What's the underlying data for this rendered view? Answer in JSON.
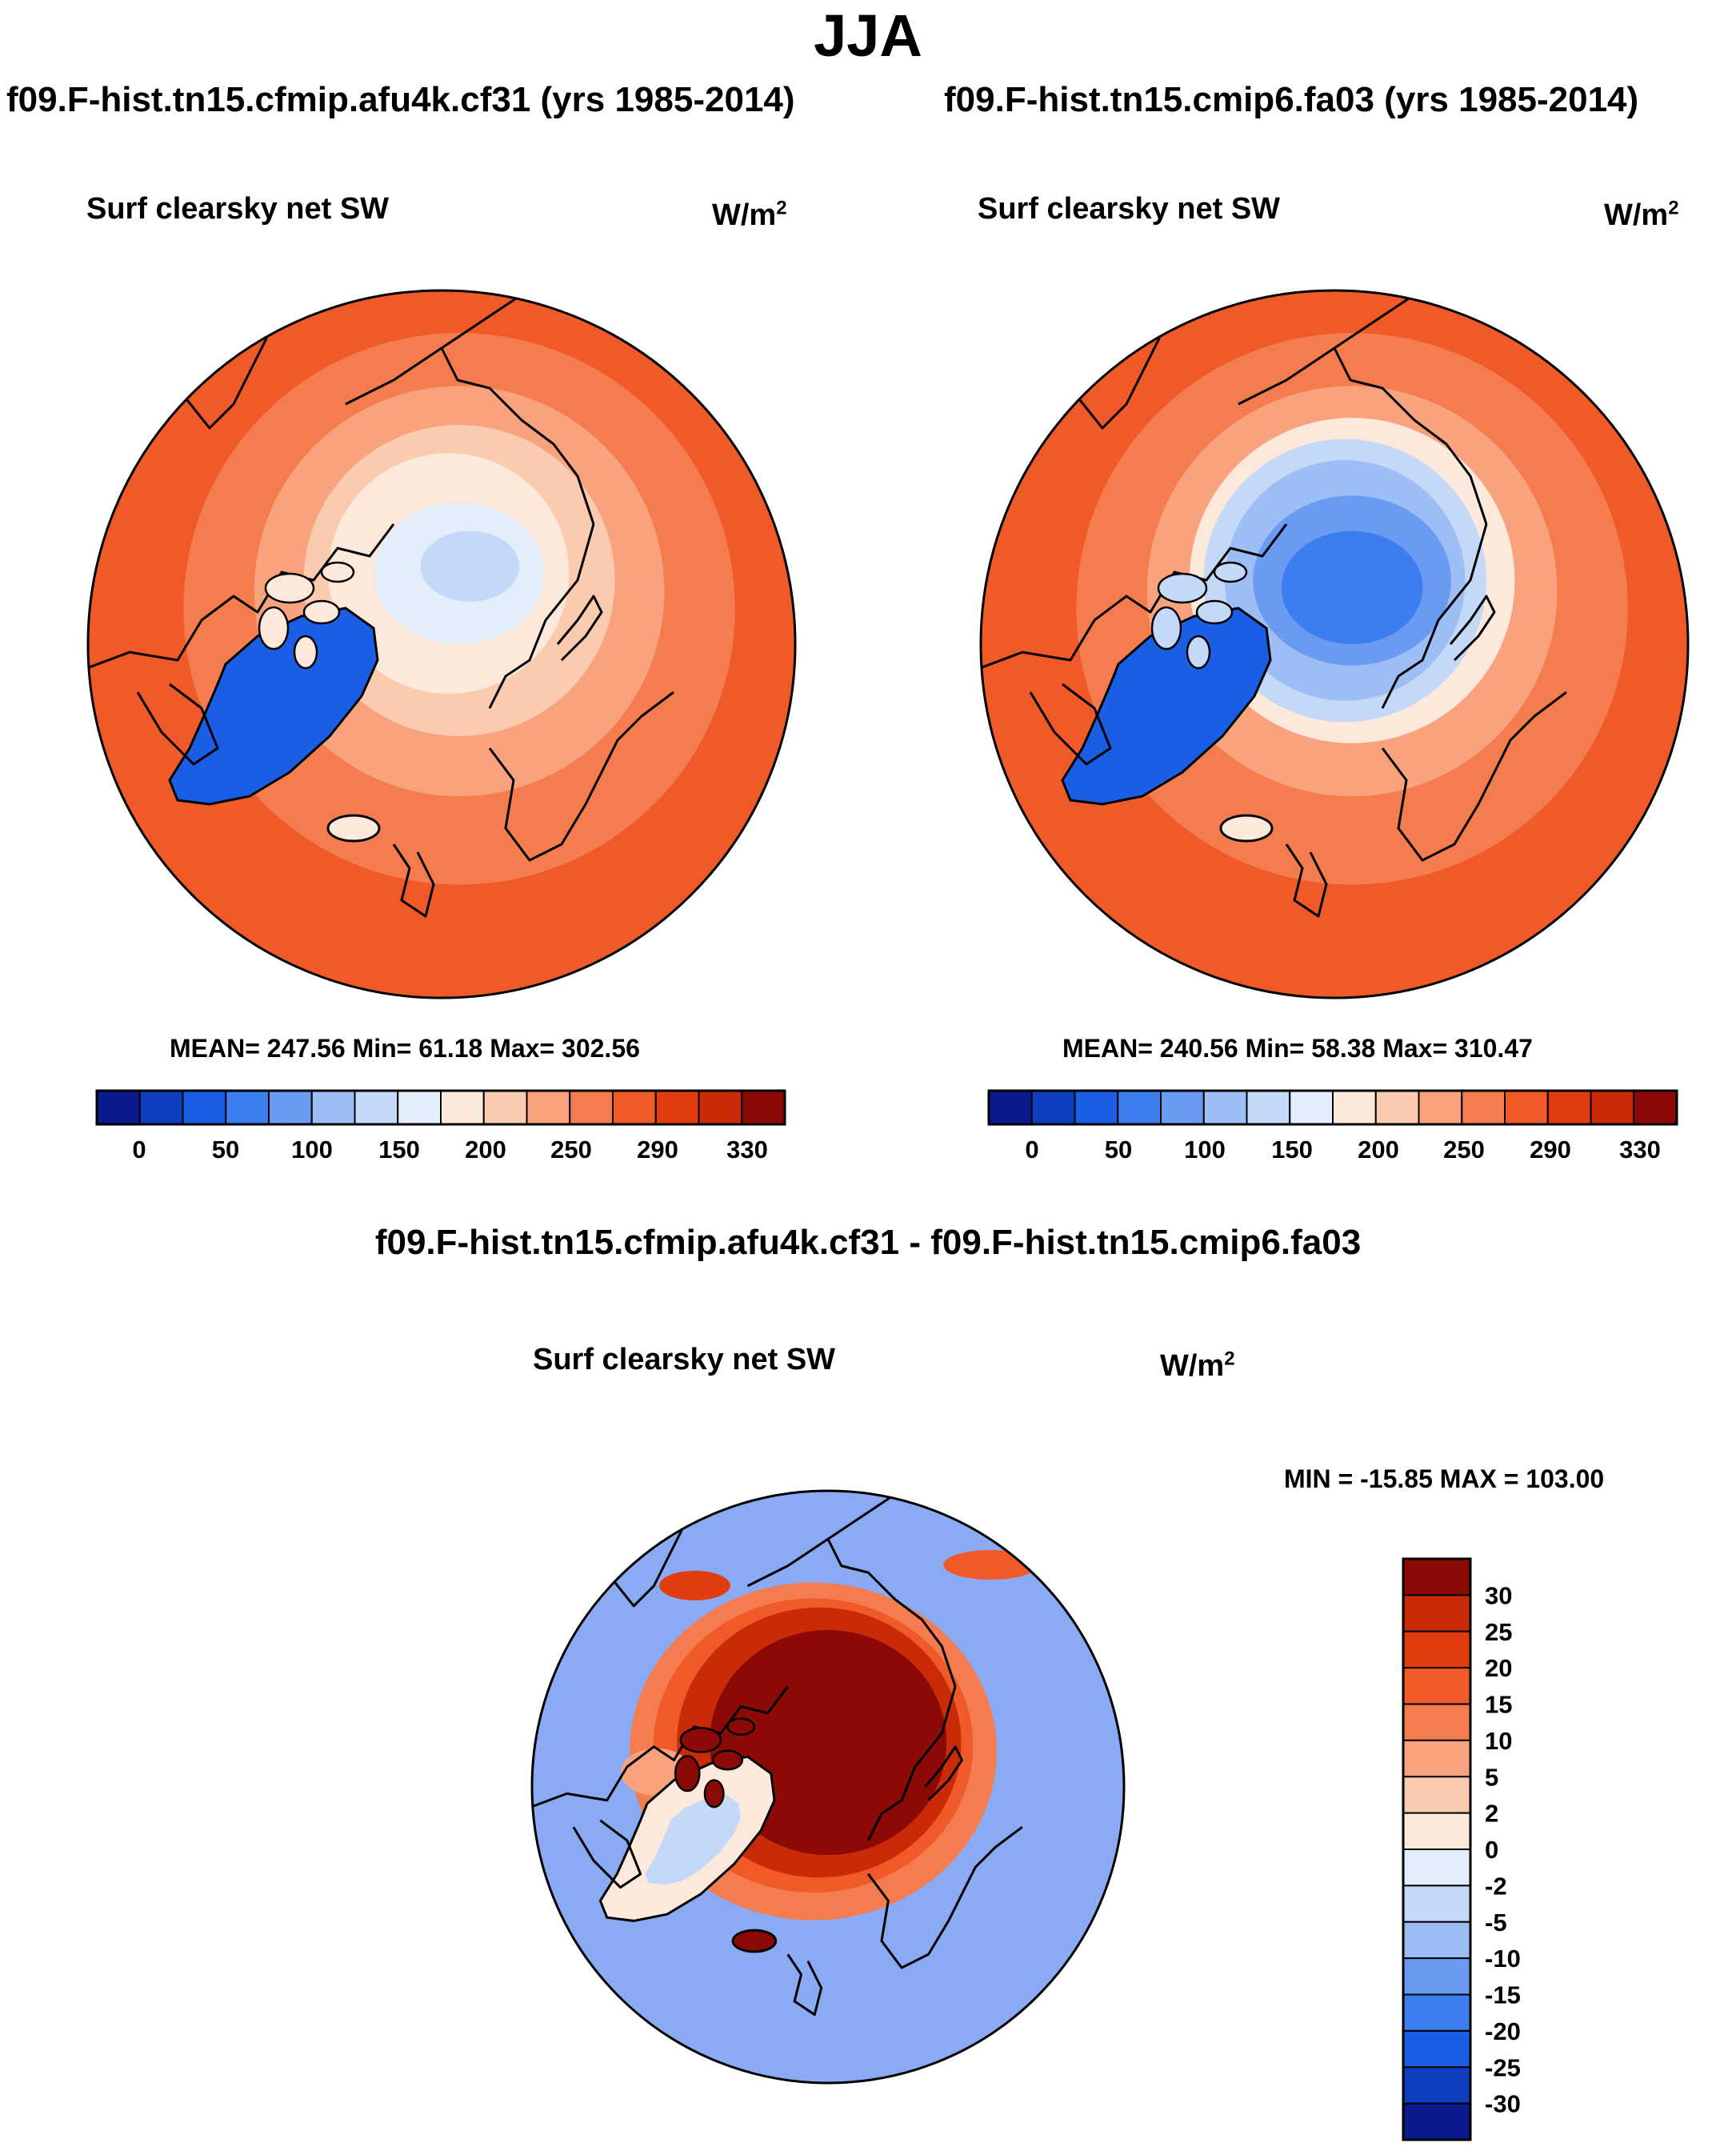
{
  "figure": {
    "season": "JJA",
    "case1": "f09.F-hist.tn15.cfmip.afu4k.cf31 (yrs 1985-2014)",
    "case2": "f09.F-hist.tn15.cmip6.fa03 (yrs 1985-2014)",
    "diff_title": "f09.F-hist.tn15.cfmip.afu4k.cf31 - f09.F-hist.tn15.cmip6.fa03"
  },
  "panels": [
    {
      "variable": "Surf clearsky net SW",
      "units": "W/m",
      "units_exp": "2",
      "stats": "MEAN= 247.56  Min=  61.18  Max= 302.56"
    },
    {
      "variable": "Surf clearsky net SW",
      "units": "W/m",
      "units_exp": "2",
      "stats": "MEAN= 240.56  Min=  58.38  Max= 310.47"
    },
    {
      "variable": "Surf clearsky net SW",
      "units": "W/m",
      "units_exp": "2",
      "stats": "MIN = -15.85 MAX = 103.00"
    }
  ],
  "chart_data": [
    {
      "type": "heatmap",
      "projection": "north-polar-stereographic",
      "title": "f09.F-hist.tn15.cfmip.afu4k.cf31 (yrs 1985-2014)",
      "variable": "Surf clearsky net SW",
      "units": "W/m2",
      "mean": 247.56,
      "min": 61.18,
      "max": 302.56,
      "colorbar_tick_labels": [
        "0",
        "50",
        "100",
        "150",
        "200",
        "250",
        "290",
        "330"
      ],
      "colorbar_colors": [
        "#0a1a8c",
        "#0d3ec0",
        "#1a5ee6",
        "#3c7df0",
        "#6a9af2",
        "#9dbdf5",
        "#c4d9f7",
        "#e3eefb",
        "#fde9dc",
        "#fbcbb0",
        "#f8a37e",
        "#f47c4e",
        "#ef5a28",
        "#e23d0e",
        "#c92a08",
        "#8b0a05"
      ],
      "field_colors": {
        "ocean_mid_latitudes": "#ef5a28",
        "arctic_ocean": "#e3eefb",
        "greenland": "#1a5ee6"
      }
    },
    {
      "type": "heatmap",
      "projection": "north-polar-stereographic",
      "title": "f09.F-hist.tn15.cmip6.fa03 (yrs 1985-2014)",
      "variable": "Surf clearsky net SW",
      "units": "W/m2",
      "mean": 240.56,
      "min": 58.38,
      "max": 310.47,
      "colorbar_tick_labels": [
        "0",
        "50",
        "100",
        "150",
        "200",
        "250",
        "290",
        "330"
      ],
      "colorbar_colors": [
        "#0a1a8c",
        "#0d3ec0",
        "#1a5ee6",
        "#3c7df0",
        "#6a9af2",
        "#9dbdf5",
        "#c4d9f7",
        "#e3eefb",
        "#fde9dc",
        "#fbcbb0",
        "#f8a37e",
        "#f47c4e",
        "#ef5a28",
        "#e23d0e",
        "#c92a08",
        "#8b0a05"
      ],
      "field_colors": {
        "ocean_mid_latitudes": "#ef5a28",
        "arctic_ocean": "#6a9af2",
        "greenland": "#1a5ee6"
      }
    },
    {
      "type": "heatmap",
      "projection": "north-polar-stereographic",
      "title": "f09.F-hist.tn15.cfmip.afu4k.cf31 - f09.F-hist.tn15.cmip6.fa03",
      "variable": "Surf clearsky net SW",
      "units": "W/m2",
      "min": -15.85,
      "max": 103.0,
      "colorbar_tick_labels": [
        "30",
        "25",
        "20",
        "15",
        "10",
        "5",
        "2",
        "0",
        "-2",
        "-5",
        "-10",
        "-15",
        "-20",
        "-25",
        "-30"
      ],
      "colorbar_colors": [
        "#8b0a05",
        "#c92a08",
        "#e23d0e",
        "#ef5a28",
        "#f47c4e",
        "#f8a37e",
        "#fbcbb0",
        "#fde9dc",
        "#e3eefb",
        "#c4d9f7",
        "#9dbdf5",
        "#6a9af2",
        "#3c7df0",
        "#1a5ee6",
        "#0d3ec0",
        "#0a1a8c"
      ],
      "field_colors": {
        "ocean_mid_latitudes": "#8aaaf3",
        "arctic_ocean": "#8b0a05",
        "greenland": "#fde9dc"
      }
    }
  ]
}
